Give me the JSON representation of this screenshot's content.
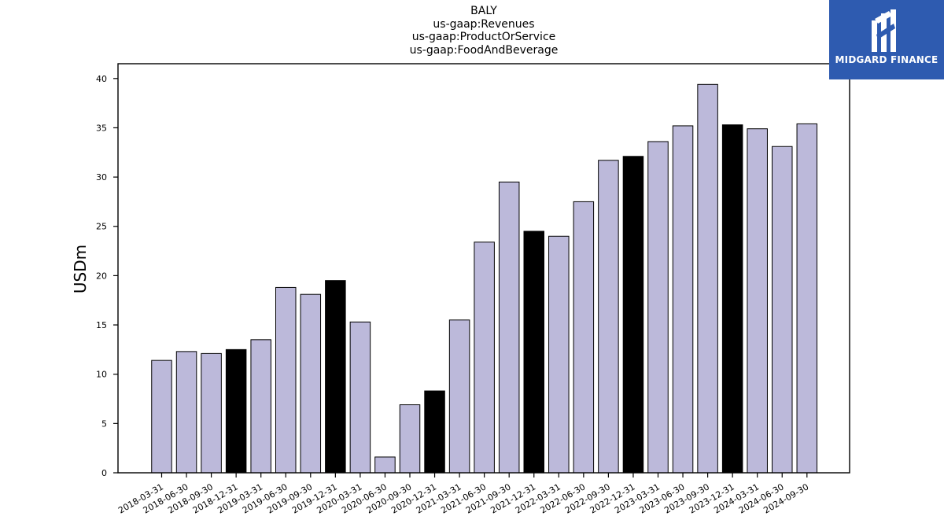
{
  "chart_data": {
    "type": "bar",
    "title_lines": [
      "BALY",
      "us-gaap:Revenues",
      "us-gaap:ProductOrService",
      "us-gaap:FoodAndBeverage"
    ],
    "xlabel": "",
    "ylabel": "USDm",
    "ylim": [
      0,
      41.5
    ],
    "yticks": [
      0,
      5,
      10,
      15,
      20,
      25,
      30,
      35,
      40
    ],
    "grid": false,
    "categories": [
      "2018-03-31",
      "2018-06-30",
      "2018-09-30",
      "2018-12-31",
      "2019-03-31",
      "2019-06-30",
      "2019-09-30",
      "2019-12-31",
      "2020-03-31",
      "2020-06-30",
      "2020-09-30",
      "2020-12-31",
      "2021-03-31",
      "2021-06-30",
      "2021-09-30",
      "2021-12-31",
      "2022-03-31",
      "2022-06-30",
      "2022-09-30",
      "2022-12-31",
      "2023-03-31",
      "2023-06-30",
      "2023-09-30",
      "2023-12-31",
      "2024-03-31",
      "2024-06-30",
      "2024-09-30"
    ],
    "values": [
      11.4,
      12.3,
      12.1,
      12.5,
      13.5,
      18.8,
      18.1,
      19.5,
      15.3,
      1.6,
      6.9,
      8.3,
      15.5,
      23.4,
      29.5,
      24.5,
      24.0,
      27.5,
      31.7,
      32.1,
      33.6,
      35.2,
      39.4,
      35.3,
      34.9,
      33.1,
      35.4
    ],
    "colors": {
      "quarter": "#bcb9da",
      "year_end": "#000000",
      "edge": "#000000"
    }
  },
  "logo": {
    "text": "MIDGARD FINANCE",
    "background": "#2e5bb0"
  }
}
